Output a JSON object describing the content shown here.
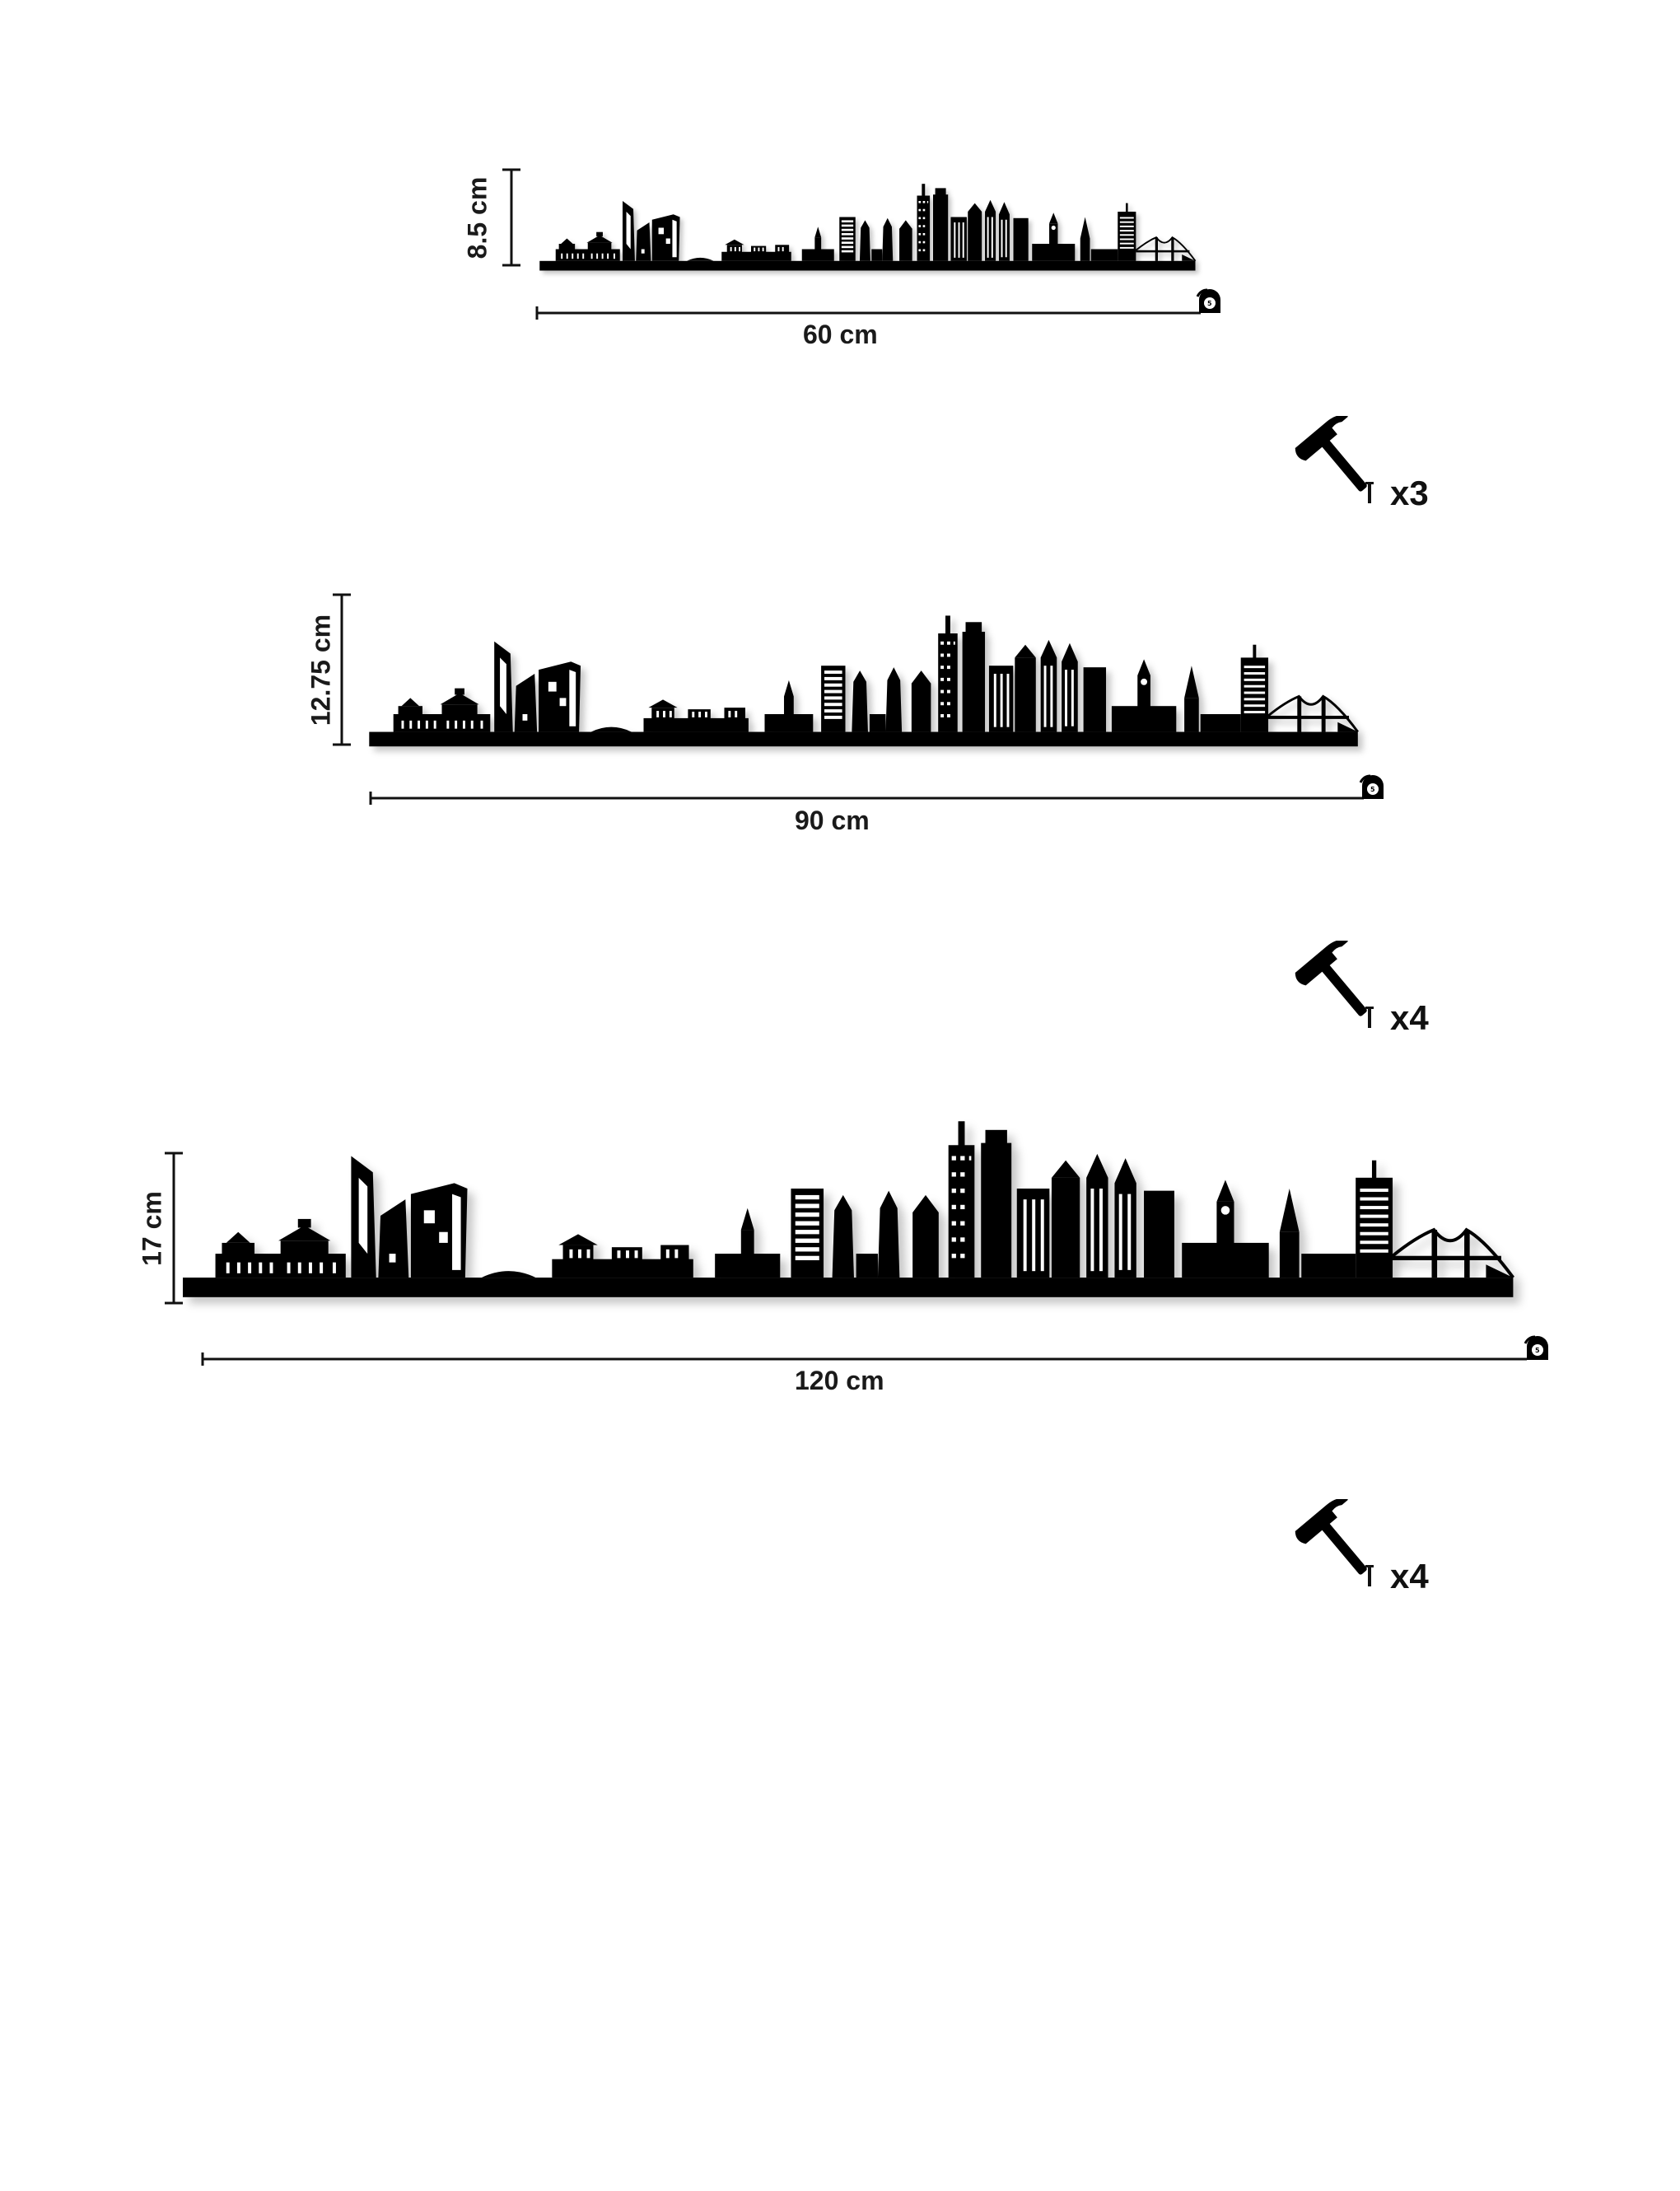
{
  "variants": [
    {
      "width_label": "60 cm",
      "height_label": "8.5 cm",
      "nail_count": "x3"
    },
    {
      "width_label": "90 cm",
      "height_label": "12.75 cm",
      "nail_count": "x4"
    },
    {
      "width_label": "120 cm",
      "height_label": "17 cm",
      "nail_count": "x4"
    }
  ],
  "icons": {
    "tape": "tape-measure-icon",
    "hammer": "hammer-icon",
    "nail": "nail-icon"
  },
  "colors": {
    "silhouette": "#000000",
    "background": "#ffffff"
  }
}
